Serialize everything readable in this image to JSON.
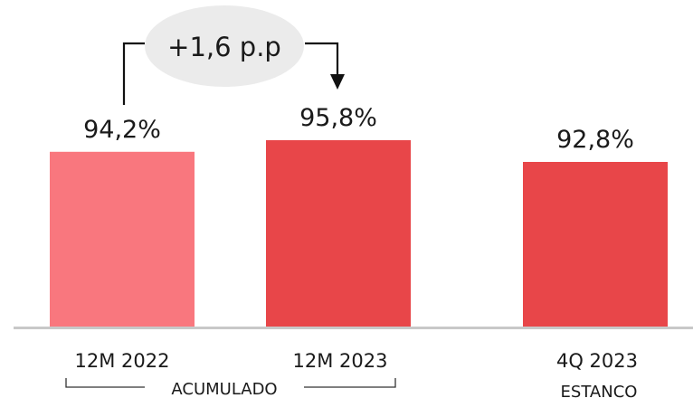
{
  "chart_data": {
    "type": "bar",
    "categories": [
      "12M 2022",
      "12M 2023",
      "4Q 2023"
    ],
    "values": [
      94.2,
      95.8,
      92.8
    ],
    "value_labels": [
      "94,2%",
      "95,8%",
      "92,8%"
    ],
    "bar_colors": [
      "#f9777e",
      "#e84649",
      "#e84649"
    ],
    "group_labels": [
      "ACUMULADO",
      "ESTANCO"
    ],
    "annotation": "+1,6 p.p",
    "axis_color": "#c8c8c8"
  }
}
